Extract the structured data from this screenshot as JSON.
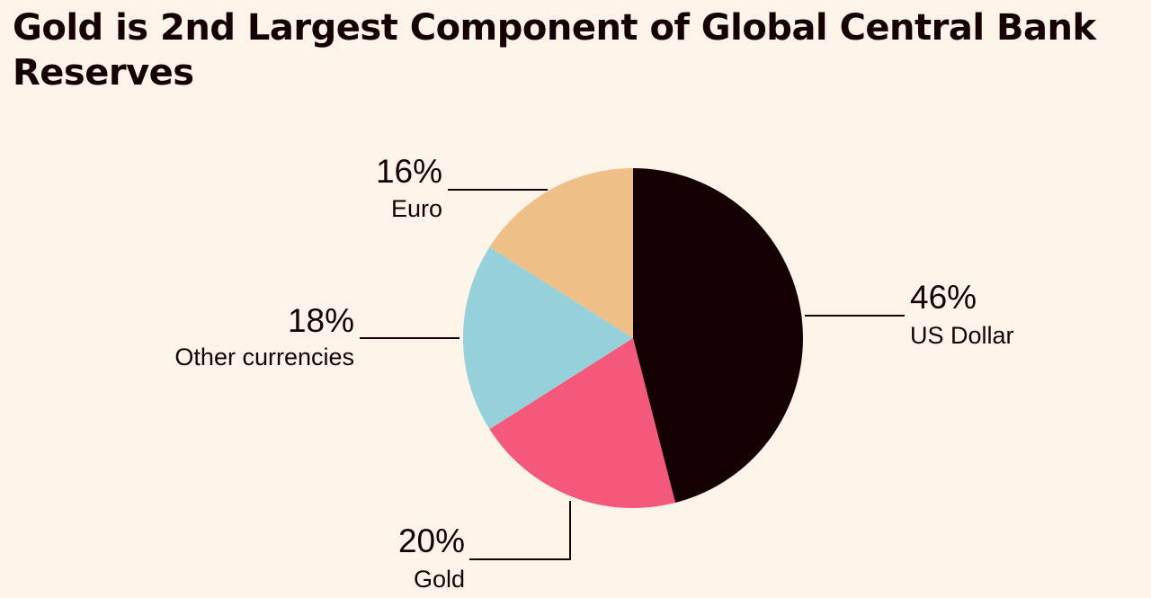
{
  "chart_data": {
    "type": "pie",
    "title": "Gold is 2nd Largest Component of Global Central Bank Reserves",
    "slices": [
      {
        "name": "US Dollar",
        "value": 46,
        "label": "46%",
        "color": "#150003"
      },
      {
        "name": "Gold",
        "value": 20,
        "label": "20%",
        "color": "#f4587a"
      },
      {
        "name": "Other currencies",
        "value": 18,
        "label": "18%",
        "color": "#96d0da"
      },
      {
        "name": "Euro",
        "value": 16,
        "label": "16%",
        "color": "#eec088"
      }
    ],
    "start": "12 o'clock",
    "direction": "clockwise"
  }
}
